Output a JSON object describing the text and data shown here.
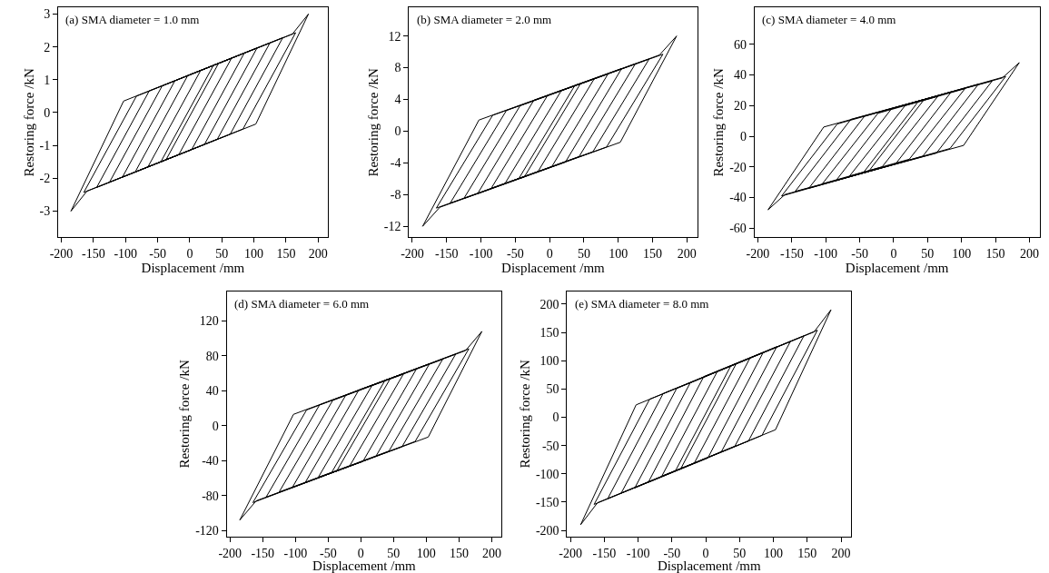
{
  "chart_data": [
    {
      "type": "line",
      "annotations": [
        "(a) SMA diameter = 1.0 mm"
      ],
      "xlabel": "Displacement /mm",
      "ylabel": "Restoring force /kN",
      "xlim": [
        -205,
        215
      ],
      "xticks": [
        -200,
        -150,
        -100,
        -50,
        0,
        50,
        100,
        150,
        200
      ],
      "ylim": [
        -3.8,
        3.2
      ],
      "yticks": [
        -3,
        -2,
        -1,
        0,
        1,
        2,
        3
      ],
      "grid": false,
      "marker": "none",
      "line_style": "solid",
      "series": [
        {
          "color": "#000000",
          "x": [
            -185,
            -103,
            160,
            185
          ],
          "values": [
            -3,
            0.35,
            2.39,
            3
          ]
        },
        {
          "color": "#000000",
          "x": [
            -185,
            -160,
            103,
            185
          ],
          "values": [
            -3,
            -2.39,
            -0.35,
            3
          ]
        },
        {
          "color": "#000000",
          "x": [
            -165,
            -83,
            165
          ],
          "values": [
            -2.43,
            0.5,
            2.43
          ]
        },
        {
          "color": "#000000",
          "x": [
            -165,
            83,
            165
          ],
          "values": [
            -2.43,
            -0.5,
            2.43
          ]
        },
        {
          "color": "#000000",
          "x": [
            -145,
            -63,
            145
          ],
          "values": [
            -2.28,
            0.66,
            2.28
          ]
        },
        {
          "color": "#000000",
          "x": [
            -145,
            63,
            145
          ],
          "values": [
            -2.28,
            -0.66,
            2.28
          ]
        },
        {
          "color": "#000000",
          "x": [
            -125,
            -43,
            125
          ],
          "values": [
            -2.12,
            0.81,
            2.12
          ]
        },
        {
          "color": "#000000",
          "x": [
            -125,
            43,
            125
          ],
          "values": [
            -2.12,
            -0.81,
            2.12
          ]
        },
        {
          "color": "#000000",
          "x": [
            -105,
            -23,
            105
          ],
          "values": [
            -1.97,
            0.97,
            1.97
          ]
        },
        {
          "color": "#000000",
          "x": [
            -105,
            23,
            105
          ],
          "values": [
            -1.97,
            -0.97,
            1.97
          ]
        },
        {
          "color": "#000000",
          "x": [
            -85,
            -3,
            85
          ],
          "values": [
            -1.81,
            1.13,
            1.81
          ]
        },
        {
          "color": "#000000",
          "x": [
            -85,
            3,
            85
          ],
          "values": [
            -1.81,
            -1.13,
            1.81
          ]
        },
        {
          "color": "#000000",
          "x": [
            -65,
            17,
            65
          ],
          "values": [
            -1.65,
            1.28,
            1.65
          ]
        },
        {
          "color": "#000000",
          "x": [
            -65,
            -17,
            65
          ],
          "values": [
            -1.65,
            -1.28,
            1.65
          ]
        },
        {
          "color": "#000000",
          "x": [
            -45,
            37,
            45
          ],
          "values": [
            -1.5,
            1.44,
            1.5
          ]
        },
        {
          "color": "#000000",
          "x": [
            -45,
            -37,
            45
          ],
          "values": [
            -1.5,
            -1.44,
            1.5
          ]
        }
      ]
    },
    {
      "type": "line",
      "annotations": [
        "(b) SMA diameter = 2.0 mm"
      ],
      "xlabel": "Displacement /mm",
      "ylabel": "Restoring force /kN",
      "xlim": [
        -205,
        215
      ],
      "xticks": [
        -200,
        -150,
        -100,
        -50,
        0,
        50,
        100,
        150,
        200
      ],
      "ylim": [
        -13.4,
        15.6
      ],
      "yticks": [
        -12,
        -8,
        -4,
        0,
        4,
        8,
        12
      ],
      "grid": false,
      "marker": "none",
      "line_style": "solid",
      "series": [
        {
          "color": "#000000",
          "x": [
            -185,
            -103,
            160,
            185
          ],
          "values": [
            -12,
            1.4,
            9.6,
            12
          ]
        },
        {
          "color": "#000000",
          "x": [
            -185,
            -160,
            103,
            185
          ],
          "values": [
            -12,
            -9.6,
            -1.4,
            12
          ]
        },
        {
          "color": "#000000",
          "x": [
            -165,
            -83,
            165
          ],
          "values": [
            -9.7,
            2,
            9.7
          ]
        },
        {
          "color": "#000000",
          "x": [
            -165,
            83,
            165
          ],
          "values": [
            -9.7,
            -2,
            9.7
          ]
        },
        {
          "color": "#000000",
          "x": [
            -145,
            -63,
            145
          ],
          "values": [
            -9.1,
            2.6,
            9.1
          ]
        },
        {
          "color": "#000000",
          "x": [
            -145,
            63,
            145
          ],
          "values": [
            -9.1,
            -2.6,
            9.1
          ]
        },
        {
          "color": "#000000",
          "x": [
            -125,
            -43,
            125
          ],
          "values": [
            -8.5,
            3.2,
            8.5
          ]
        },
        {
          "color": "#000000",
          "x": [
            -125,
            43,
            125
          ],
          "values": [
            -8.5,
            -3.2,
            8.5
          ]
        },
        {
          "color": "#000000",
          "x": [
            -105,
            -23,
            105
          ],
          "values": [
            -7.9,
            3.9,
            7.9
          ]
        },
        {
          "color": "#000000",
          "x": [
            -105,
            23,
            105
          ],
          "values": [
            -7.9,
            -3.9,
            7.9
          ]
        },
        {
          "color": "#000000",
          "x": [
            -85,
            -3,
            85
          ],
          "values": [
            -7.2,
            4.5,
            7.2
          ]
        },
        {
          "color": "#000000",
          "x": [
            -85,
            3,
            85
          ],
          "values": [
            -7.2,
            -4.5,
            7.2
          ]
        },
        {
          "color": "#000000",
          "x": [
            -65,
            17,
            65
          ],
          "values": [
            -6.6,
            5.1,
            6.6
          ]
        },
        {
          "color": "#000000",
          "x": [
            -65,
            -17,
            65
          ],
          "values": [
            -6.6,
            -5.1,
            6.6
          ]
        },
        {
          "color": "#000000",
          "x": [
            -45,
            37,
            45
          ],
          "values": [
            -6,
            5.8,
            6
          ]
        },
        {
          "color": "#000000",
          "x": [
            -45,
            -37,
            45
          ],
          "values": [
            -6,
            -5.8,
            6
          ]
        }
      ]
    },
    {
      "type": "line",
      "annotations": [
        "(c) SMA diameter = 4.0 mm"
      ],
      "xlabel": "Displacement /mm",
      "ylabel": "Restoring force /kN",
      "xlim": [
        -205,
        215
      ],
      "xticks": [
        -200,
        -150,
        -100,
        -50,
        0,
        50,
        100,
        150,
        200
      ],
      "ylim": [
        -66,
        84
      ],
      "yticks": [
        -60,
        -40,
        -20,
        0,
        20,
        40,
        60
      ],
      "grid": false,
      "marker": "none",
      "line_style": "solid",
      "series": [
        {
          "color": "#000000",
          "x": [
            -185,
            -103,
            160,
            185
          ],
          "values": [
            -48,
            6,
            38,
            48
          ]
        },
        {
          "color": "#000000",
          "x": [
            -185,
            -160,
            103,
            185
          ],
          "values": [
            -48,
            -38,
            -6,
            48
          ]
        },
        {
          "color": "#000000",
          "x": [
            -165,
            -83,
            165
          ],
          "values": [
            -39,
            8,
            39
          ]
        },
        {
          "color": "#000000",
          "x": [
            -165,
            83,
            165
          ],
          "values": [
            -39,
            -8,
            39
          ]
        },
        {
          "color": "#000000",
          "x": [
            -145,
            -63,
            145
          ],
          "values": [
            -36,
            11,
            36
          ]
        },
        {
          "color": "#000000",
          "x": [
            -145,
            63,
            145
          ],
          "values": [
            -36,
            -11,
            36
          ]
        },
        {
          "color": "#000000",
          "x": [
            -125,
            -43,
            125
          ],
          "values": [
            -34,
            13,
            34
          ]
        },
        {
          "color": "#000000",
          "x": [
            -125,
            43,
            125
          ],
          "values": [
            -34,
            -13,
            34
          ]
        },
        {
          "color": "#000000",
          "x": [
            -105,
            -23,
            105
          ],
          "values": [
            -31,
            15,
            31
          ]
        },
        {
          "color": "#000000",
          "x": [
            -105,
            23,
            105
          ],
          "values": [
            -31,
            -15,
            31
          ]
        },
        {
          "color": "#000000",
          "x": [
            -85,
            -3,
            85
          ],
          "values": [
            -29,
            18,
            29
          ]
        },
        {
          "color": "#000000",
          "x": [
            -85,
            3,
            85
          ],
          "values": [
            -29,
            -18,
            29
          ]
        },
        {
          "color": "#000000",
          "x": [
            -65,
            17,
            65
          ],
          "values": [
            -26,
            20,
            26
          ]
        },
        {
          "color": "#000000",
          "x": [
            -65,
            -17,
            65
          ],
          "values": [
            -26,
            -20,
            26
          ]
        },
        {
          "color": "#000000",
          "x": [
            -45,
            37,
            45
          ],
          "values": [
            -24,
            23,
            24
          ]
        },
        {
          "color": "#000000",
          "x": [
            -45,
            -37,
            45
          ],
          "values": [
            -24,
            -23,
            24
          ]
        }
      ]
    },
    {
      "type": "line",
      "annotations": [
        "(d) SMA diameter = 6.0 mm"
      ],
      "xlabel": "Displacement /mm",
      "ylabel": "Restoring force /kN",
      "xlim": [
        -205,
        215
      ],
      "xticks": [
        -200,
        -150,
        -100,
        -50,
        0,
        50,
        100,
        150,
        200
      ],
      "ylim": [
        -127,
        154
      ],
      "yticks": [
        -120,
        -80,
        -40,
        0,
        40,
        80,
        120
      ],
      "grid": false,
      "marker": "none",
      "line_style": "solid",
      "series": [
        {
          "color": "#000000",
          "x": [
            -185,
            -103,
            160,
            185
          ],
          "values": [
            -108,
            13,
            86,
            108
          ]
        },
        {
          "color": "#000000",
          "x": [
            -185,
            -160,
            103,
            185
          ],
          "values": [
            -108,
            -86,
            -13,
            108
          ]
        },
        {
          "color": "#000000",
          "x": [
            -165,
            -83,
            165
          ],
          "values": [
            -88,
            18,
            88
          ]
        },
        {
          "color": "#000000",
          "x": [
            -165,
            83,
            165
          ],
          "values": [
            -88,
            -18,
            88
          ]
        },
        {
          "color": "#000000",
          "x": [
            -145,
            -63,
            145
          ],
          "values": [
            -82,
            24,
            82
          ]
        },
        {
          "color": "#000000",
          "x": [
            -145,
            63,
            145
          ],
          "values": [
            -82,
            -24,
            82
          ]
        },
        {
          "color": "#000000",
          "x": [
            -125,
            -43,
            125
          ],
          "values": [
            -76,
            29,
            76
          ]
        },
        {
          "color": "#000000",
          "x": [
            -125,
            43,
            125
          ],
          "values": [
            -76,
            -29,
            76
          ]
        },
        {
          "color": "#000000",
          "x": [
            -105,
            -23,
            105
          ],
          "values": [
            -71,
            35,
            71
          ]
        },
        {
          "color": "#000000",
          "x": [
            -105,
            23,
            105
          ],
          "values": [
            -71,
            -35,
            71
          ]
        },
        {
          "color": "#000000",
          "x": [
            -85,
            -3,
            85
          ],
          "values": [
            -65,
            41,
            65
          ]
        },
        {
          "color": "#000000",
          "x": [
            -85,
            3,
            85
          ],
          "values": [
            -65,
            -41,
            65
          ]
        },
        {
          "color": "#000000",
          "x": [
            -65,
            17,
            65
          ],
          "values": [
            -59,
            46,
            59
          ]
        },
        {
          "color": "#000000",
          "x": [
            -65,
            -17,
            65
          ],
          "values": [
            -59,
            -46,
            59
          ]
        },
        {
          "color": "#000000",
          "x": [
            -45,
            37,
            45
          ],
          "values": [
            -54,
            52,
            54
          ]
        },
        {
          "color": "#000000",
          "x": [
            -45,
            -37,
            45
          ],
          "values": [
            -54,
            -52,
            54
          ]
        }
      ]
    },
    {
      "type": "line",
      "annotations": [
        "(e) SMA diameter = 8.0 mm"
      ],
      "xlabel": "Displacement /mm",
      "ylabel": "Restoring force /kN",
      "xlim": [
        -205,
        215
      ],
      "xticks": [
        -200,
        -150,
        -100,
        -50,
        0,
        50,
        100,
        150,
        200
      ],
      "ylim": [
        -211,
        223
      ],
      "yticks": [
        -200,
        -150,
        -100,
        -50,
        0,
        50,
        100,
        150,
        200
      ],
      "grid": false,
      "marker": "none",
      "line_style": "solid",
      "series": [
        {
          "color": "#000000",
          "x": [
            -185,
            -103,
            160,
            185
          ],
          "values": [
            -190,
            22,
            151,
            190
          ]
        },
        {
          "color": "#000000",
          "x": [
            -185,
            -160,
            103,
            185
          ],
          "values": [
            -190,
            -151,
            -22,
            190
          ]
        },
        {
          "color": "#000000",
          "x": [
            -165,
            -83,
            165
          ],
          "values": [
            -154,
            32,
            154
          ]
        },
        {
          "color": "#000000",
          "x": [
            -165,
            83,
            165
          ],
          "values": [
            -154,
            -32,
            154
          ]
        },
        {
          "color": "#000000",
          "x": [
            -145,
            -63,
            145
          ],
          "values": [
            -144,
            42,
            144
          ]
        },
        {
          "color": "#000000",
          "x": [
            -145,
            63,
            145
          ],
          "values": [
            -144,
            -42,
            144
          ]
        },
        {
          "color": "#000000",
          "x": [
            -125,
            -43,
            125
          ],
          "values": [
            -134,
            51,
            134
          ]
        },
        {
          "color": "#000000",
          "x": [
            -125,
            43,
            125
          ],
          "values": [
            -134,
            -51,
            134
          ]
        },
        {
          "color": "#000000",
          "x": [
            -105,
            -23,
            105
          ],
          "values": [
            -125,
            61,
            125
          ]
        },
        {
          "color": "#000000",
          "x": [
            -105,
            23,
            105
          ],
          "values": [
            -125,
            -61,
            125
          ]
        },
        {
          "color": "#000000",
          "x": [
            -85,
            -3,
            85
          ],
          "values": [
            -115,
            72,
            115
          ]
        },
        {
          "color": "#000000",
          "x": [
            -85,
            3,
            85
          ],
          "values": [
            -115,
            -72,
            115
          ]
        },
        {
          "color": "#000000",
          "x": [
            -65,
            17,
            65
          ],
          "values": [
            -104,
            81,
            104
          ]
        },
        {
          "color": "#000000",
          "x": [
            -65,
            -17,
            65
          ],
          "values": [
            -104,
            -81,
            104
          ]
        },
        {
          "color": "#000000",
          "x": [
            -45,
            37,
            45
          ],
          "values": [
            -95,
            91,
            95
          ]
        },
        {
          "color": "#000000",
          "x": [
            -45,
            -37,
            45
          ],
          "values": [
            -95,
            -91,
            95
          ]
        }
      ]
    }
  ]
}
